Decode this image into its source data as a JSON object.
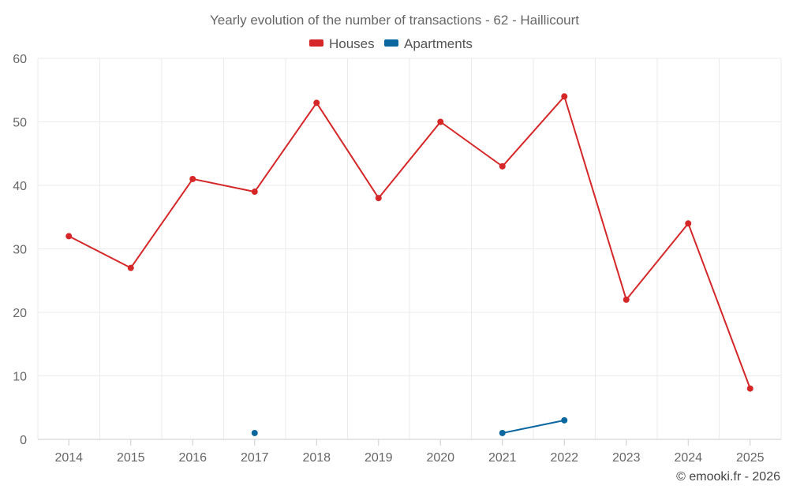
{
  "chart_data": {
    "type": "line",
    "title": "Yearly evolution of the number of transactions - 62 - Haillicourt",
    "categories": [
      "2014",
      "2015",
      "2016",
      "2017",
      "2018",
      "2019",
      "2020",
      "2021",
      "2022",
      "2023",
      "2024",
      "2025"
    ],
    "ylim": [
      0,
      60
    ],
    "yticks": [
      0,
      10,
      20,
      30,
      40,
      50,
      60
    ],
    "grid": true,
    "legend_position": "top-center",
    "series": [
      {
        "name": "Houses",
        "color": "#d62728",
        "values": [
          32,
          27,
          41,
          39,
          53,
          38,
          50,
          43,
          54,
          22,
          34,
          8
        ]
      },
      {
        "name": "Apartments",
        "color": "#0b67a0",
        "values": [
          null,
          null,
          null,
          1,
          null,
          null,
          null,
          1,
          3,
          null,
          null,
          null
        ]
      }
    ],
    "credit": "© emooki.fr - 2026"
  }
}
